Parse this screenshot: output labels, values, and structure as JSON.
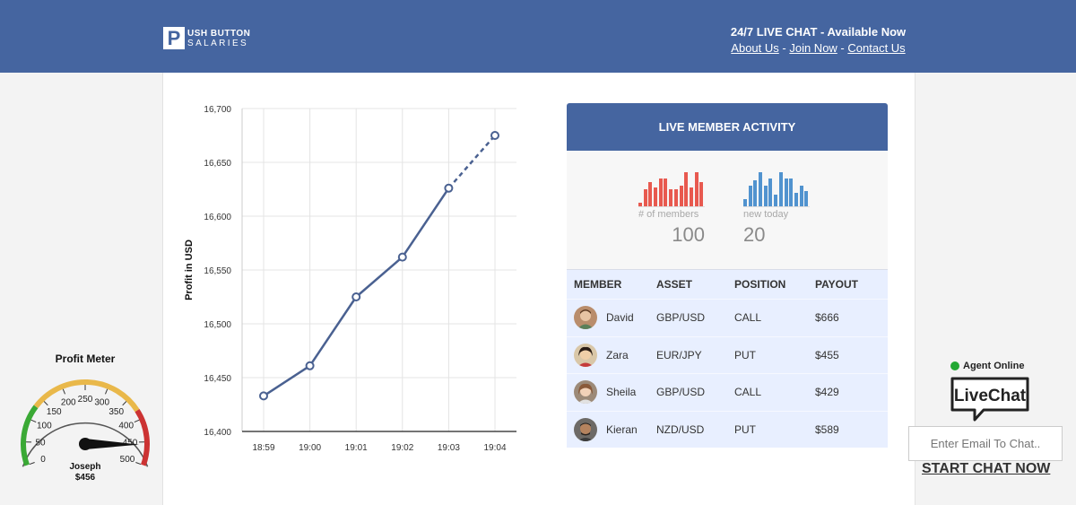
{
  "header": {
    "logo_mark": "P",
    "logo_line1": "USH BUTTON",
    "logo_line2": "SALARIES",
    "chat_status": "24/7 LIVE CHAT - Available Now",
    "links": [
      "About Us",
      "Join Now",
      "Contact Us"
    ],
    "separator": " - "
  },
  "chart_data": {
    "type": "line",
    "title": "",
    "xlabel": "",
    "ylabel": "Profit in USD",
    "categories": [
      "18:59",
      "19:00",
      "19:01",
      "19:02",
      "19:03",
      "19:04"
    ],
    "x": [
      "18:59",
      "19:00",
      "19:01",
      "19:02",
      "19:03",
      "19:04"
    ],
    "series": [
      {
        "values": [
          16433,
          16461,
          16525,
          16562,
          16626,
          16675
        ]
      }
    ],
    "ylim": [
      16400,
      16700
    ],
    "yticks": [
      "16,700",
      "16,650",
      "16,600",
      "16,550",
      "16,500",
      "16,450",
      "16,400"
    ],
    "grid": true,
    "projected_last_segment": true,
    "line_color": "#4a6191"
  },
  "activity": {
    "title": "LIVE MEMBER ACTIVITY",
    "members_label": "# of members",
    "members_value": "100",
    "new_label": "new today",
    "new_value": "20",
    "members_bars": [
      0.1,
      0.45,
      0.65,
      0.5,
      0.75,
      0.75,
      0.45,
      0.45,
      0.55,
      0.9,
      0.5,
      0.9,
      0.65
    ],
    "new_bars": [
      0.2,
      0.55,
      0.7,
      0.9,
      0.55,
      0.75,
      0.3,
      0.9,
      0.75,
      0.75,
      0.35,
      0.55,
      0.4
    ],
    "members_color": "#e8594f",
    "new_color": "#5193cf",
    "columns": [
      "MEMBER",
      "ASSET",
      "POSITION",
      "PAYOUT"
    ],
    "rows": [
      {
        "member": "David",
        "asset": "GBP/USD",
        "position": "CALL",
        "payout": "$666"
      },
      {
        "member": "Zara",
        "asset": "EUR/JPY",
        "position": "PUT",
        "payout": "$455"
      },
      {
        "member": "Sheila",
        "asset": "GBP/USD",
        "position": "CALL",
        "payout": "$429"
      },
      {
        "member": "Kieran",
        "asset": "NZD/USD",
        "position": "PUT",
        "payout": "$589"
      }
    ]
  },
  "meter": {
    "title": "Profit Meter",
    "ticks": [
      "0",
      "50",
      "100",
      "150",
      "200",
      "250",
      "300",
      "350",
      "400",
      "450",
      "500"
    ],
    "value": 456,
    "name": "Joseph",
    "amount": "$456"
  },
  "livechat": {
    "agent_status": "Agent Online",
    "logo_text": "LiveChat",
    "email_placeholder": "Enter Email To Chat..",
    "start_label": "START CHAT NOW"
  }
}
